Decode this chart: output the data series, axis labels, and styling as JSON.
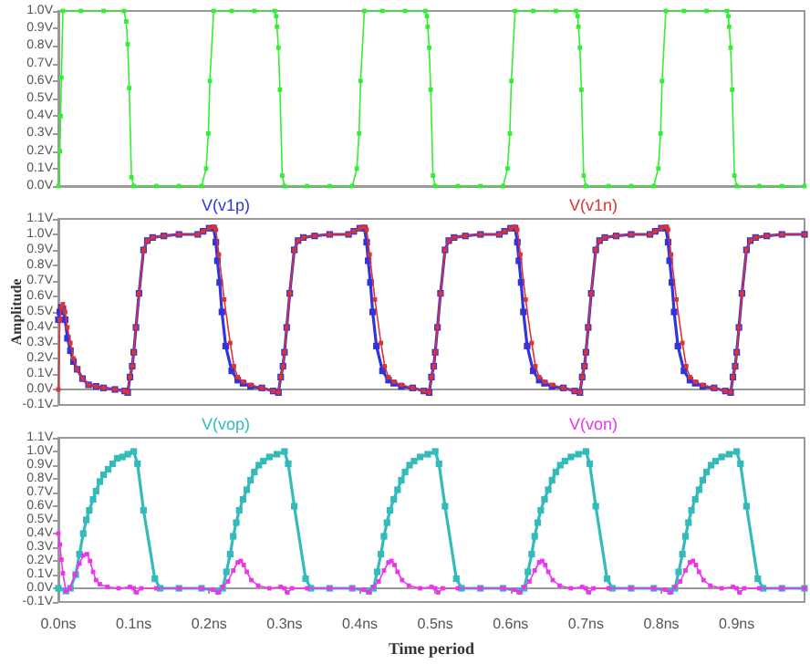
{
  "chart_data": [
    {
      "type": "line",
      "marker": "square",
      "line_style": "solid",
      "tick_labels": "y",
      "xlim": [
        0,
        0.99
      ],
      "ylim": [
        0,
        1.0
      ],
      "yticks": [
        {
          "value": 0,
          "label": "0.0V"
        },
        {
          "value": 0.1,
          "label": "0.1V"
        },
        {
          "value": 0.2,
          "label": "0.2V"
        },
        {
          "value": 0.3,
          "label": "0.3V"
        },
        {
          "value": 0.4,
          "label": "0.4V"
        },
        {
          "value": 0.5,
          "label": "0.5V"
        },
        {
          "value": 0.6,
          "label": "0.6V"
        },
        {
          "value": 0.7,
          "label": "0.7V"
        },
        {
          "value": 0.8,
          "label": "0.8V"
        },
        {
          "value": 0.9,
          "label": "0.9V"
        },
        {
          "value": 1.0,
          "label": "1.0V"
        }
      ],
      "series": [
        {
          "color": "#33ee33",
          "x": [
            0,
            0.002,
            0.003,
            0.004,
            0.006,
            0.03,
            0.06,
            0.087,
            0.09,
            0.092,
            0.094,
            0.097,
            0.1,
            0.13,
            0.16,
            0.19,
            0.196,
            0.199,
            0.201,
            0.206,
            0.23,
            0.26,
            0.287,
            0.289,
            0.29,
            0.292,
            0.294,
            0.297,
            0.3,
            0.33,
            0.36,
            0.39,
            0.396,
            0.399,
            0.401,
            0.406,
            0.43,
            0.46,
            0.487,
            0.489,
            0.49,
            0.492,
            0.494,
            0.497,
            0.5,
            0.53,
            0.56,
            0.59,
            0.596,
            0.599,
            0.601,
            0.606,
            0.63,
            0.66,
            0.687,
            0.689,
            0.69,
            0.692,
            0.694,
            0.697,
            0.7,
            0.73,
            0.76,
            0.79,
            0.796,
            0.799,
            0.801,
            0.806,
            0.83,
            0.86,
            0.887,
            0.889,
            0.89,
            0.892,
            0.894,
            0.897,
            0.9,
            0.93,
            0.96,
            0.99
          ],
          "values": [
            0,
            0.2,
            0.4,
            0.62,
            1.0,
            1.0,
            1.0,
            1.0,
            0.94,
            0.81,
            0.56,
            0.05,
            0,
            0,
            0,
            0,
            0.1,
            0.3,
            0.6,
            1.0,
            1.0,
            1.0,
            1.0,
            0.97,
            0.91,
            0.79,
            0.55,
            0.06,
            0,
            0,
            0,
            0,
            0.1,
            0.3,
            0.6,
            1.0,
            1.0,
            1.0,
            1.0,
            0.97,
            0.91,
            0.79,
            0.55,
            0.06,
            0,
            0,
            0,
            0,
            0.1,
            0.3,
            0.6,
            1.0,
            1.0,
            1.0,
            1.0,
            0.97,
            0.91,
            0.79,
            0.55,
            0.06,
            0,
            0,
            0,
            0,
            0.1,
            0.3,
            0.6,
            1.0,
            1.0,
            1.0,
            1.0,
            0.97,
            0.91,
            0.79,
            0.55,
            0.06,
            0,
            0,
            0,
            0
          ]
        }
      ]
    },
    {
      "type": "line",
      "marker": "square",
      "line_style": "solid",
      "tick_labels": "y",
      "legend": "top",
      "ylabel": "Amplitude",
      "xlim": [
        0,
        0.99
      ],
      "ylim": [
        -0.1,
        1.1
      ],
      "yticks": [
        {
          "value": -0.1,
          "label": "-0.1V"
        },
        {
          "value": 0,
          "label": "0.0V"
        },
        {
          "value": 0.1,
          "label": "0.1V"
        },
        {
          "value": 0.2,
          "label": "0.2V"
        },
        {
          "value": 0.3,
          "label": "0.3V"
        },
        {
          "value": 0.4,
          "label": "0.4V"
        },
        {
          "value": 0.5,
          "label": "0.5V"
        },
        {
          "value": 0.6,
          "label": "0.6V"
        },
        {
          "value": 0.7,
          "label": "0.7V"
        },
        {
          "value": 0.8,
          "label": "0.8V"
        },
        {
          "value": 0.9,
          "label": "0.9V"
        },
        {
          "value": 1.0,
          "label": "1.0V"
        },
        {
          "value": 1.1,
          "label": "1.1V"
        }
      ],
      "series": [
        {
          "name": "V(v1p)",
          "color": "#3333dd",
          "x": [
            0,
            0.002,
            0.004,
            0.006,
            0.009,
            0.012,
            0.016,
            0.02,
            0.025,
            0.032,
            0.04,
            0.05,
            0.06,
            0.075,
            0.088,
            0.092,
            0.095,
            0.098,
            0.1,
            0.103,
            0.107,
            0.113,
            0.118,
            0.125,
            0.14,
            0.16,
            0.185,
            0.192,
            0.2,
            0.206,
            0.209,
            0.211,
            0.214,
            0.217,
            0.222,
            0.23,
            0.238,
            0.245,
            0.255,
            0.27,
            0.285,
            0.292,
            0.295,
            0.298,
            0.3,
            0.303,
            0.307,
            0.313,
            0.318,
            0.325,
            0.34,
            0.36,
            0.385,
            0.392,
            0.4,
            0.406,
            0.409,
            0.411,
            0.414,
            0.417,
            0.422,
            0.43,
            0.438,
            0.445,
            0.455,
            0.47,
            0.485,
            0.492,
            0.495,
            0.498,
            0.5,
            0.503,
            0.507,
            0.513,
            0.518,
            0.525,
            0.54,
            0.56,
            0.585,
            0.592,
            0.6,
            0.606,
            0.609,
            0.611,
            0.614,
            0.617,
            0.622,
            0.63,
            0.638,
            0.645,
            0.655,
            0.67,
            0.685,
            0.692,
            0.695,
            0.698,
            0.7,
            0.703,
            0.707,
            0.713,
            0.718,
            0.725,
            0.74,
            0.76,
            0.785,
            0.792,
            0.8,
            0.806,
            0.809,
            0.811,
            0.814,
            0.817,
            0.822,
            0.83,
            0.838,
            0.845,
            0.855,
            0.87,
            0.885,
            0.892,
            0.895,
            0.898,
            0.9,
            0.903,
            0.907,
            0.913,
            0.918,
            0.925,
            0.94,
            0.96,
            0.99
          ],
          "values": [
            0.45,
            0.5,
            0.53,
            0.52,
            0.45,
            0.33,
            0.25,
            0.18,
            0.13,
            0.07,
            0.03,
            0.02,
            0.01,
            0,
            -0.01,
            -0.02,
            0.08,
            0.15,
            0.24,
            0.4,
            0.62,
            0.9,
            0.96,
            0.98,
            0.99,
            1.0,
            1.0,
            1.02,
            1.04,
            1.04,
            0.95,
            0.83,
            0.69,
            0.5,
            0.28,
            0.12,
            0.06,
            0.04,
            0.02,
            0.01,
            -0.01,
            -0.02,
            0.08,
            0.15,
            0.24,
            0.4,
            0.62,
            0.9,
            0.96,
            0.98,
            0.99,
            1.0,
            1.0,
            1.02,
            1.04,
            1.04,
            0.95,
            0.83,
            0.69,
            0.5,
            0.28,
            0.12,
            0.06,
            0.04,
            0.02,
            0.01,
            -0.01,
            -0.02,
            0.08,
            0.15,
            0.24,
            0.4,
            0.62,
            0.9,
            0.96,
            0.98,
            0.99,
            1.0,
            1.0,
            1.02,
            1.04,
            1.04,
            0.95,
            0.83,
            0.69,
            0.5,
            0.28,
            0.12,
            0.06,
            0.04,
            0.02,
            0.01,
            -0.01,
            -0.02,
            0.08,
            0.15,
            0.24,
            0.4,
            0.62,
            0.9,
            0.96,
            0.98,
            0.99,
            1.0,
            1.0,
            1.02,
            1.04,
            1.04,
            0.95,
            0.83,
            0.69,
            0.5,
            0.28,
            0.12,
            0.06,
            0.04,
            0.02,
            0.01,
            -0.01,
            -0.02,
            0.08,
            0.15,
            0.24,
            0.4,
            0.62,
            0.9,
            0.96,
            0.98,
            0.99,
            1.0,
            1.0
          ]
        },
        {
          "name": "V(v1n)",
          "color": "#dd3333",
          "x": [
            0,
            0.002,
            0.004,
            0.006,
            0.009,
            0.012,
            0.016,
            0.02,
            0.025,
            0.032,
            0.04,
            0.05,
            0.06,
            0.075,
            0.088,
            0.092,
            0.095,
            0.098,
            0.1,
            0.103,
            0.107,
            0.113,
            0.118,
            0.125,
            0.14,
            0.16,
            0.185,
            0.192,
            0.2,
            0.206,
            0.209,
            0.213,
            0.22,
            0.228,
            0.233,
            0.238,
            0.245,
            0.255,
            0.27,
            0.285,
            0.292,
            0.295,
            0.298,
            0.3,
            0.303,
            0.307,
            0.313,
            0.318,
            0.325,
            0.34,
            0.36,
            0.385,
            0.392,
            0.4,
            0.406,
            0.409,
            0.413,
            0.42,
            0.428,
            0.433,
            0.438,
            0.445,
            0.455,
            0.47,
            0.485,
            0.492,
            0.495,
            0.498,
            0.5,
            0.503,
            0.507,
            0.513,
            0.518,
            0.525,
            0.54,
            0.56,
            0.585,
            0.592,
            0.6,
            0.606,
            0.609,
            0.613,
            0.62,
            0.628,
            0.633,
            0.638,
            0.645,
            0.655,
            0.67,
            0.685,
            0.692,
            0.695,
            0.698,
            0.7,
            0.703,
            0.707,
            0.713,
            0.718,
            0.725,
            0.74,
            0.76,
            0.785,
            0.792,
            0.8,
            0.806,
            0.809,
            0.813,
            0.82,
            0.828,
            0.833,
            0.838,
            0.845,
            0.855,
            0.87,
            0.885,
            0.892,
            0.895,
            0.898,
            0.9,
            0.903,
            0.907,
            0.913,
            0.918,
            0.925,
            0.94,
            0.96,
            0.99
          ],
          "values": [
            0,
            0.45,
            0.53,
            0.55,
            0.5,
            0.4,
            0.3,
            0.2,
            0.13,
            0.07,
            0.03,
            0.02,
            0.01,
            0,
            -0.01,
            -0.02,
            0.08,
            0.15,
            0.24,
            0.4,
            0.62,
            0.9,
            0.96,
            0.98,
            0.99,
            1.0,
            1.0,
            1.02,
            1.04,
            1.05,
            1.03,
            0.87,
            0.58,
            0.3,
            0.15,
            0.08,
            0.05,
            0.03,
            0.01,
            -0.01,
            -0.02,
            0.08,
            0.15,
            0.24,
            0.4,
            0.62,
            0.9,
            0.96,
            0.98,
            0.99,
            1.0,
            1.0,
            1.02,
            1.04,
            1.05,
            1.03,
            0.87,
            0.58,
            0.3,
            0.15,
            0.08,
            0.05,
            0.03,
            0.01,
            -0.01,
            -0.02,
            0.08,
            0.15,
            0.24,
            0.4,
            0.62,
            0.9,
            0.96,
            0.98,
            0.99,
            1.0,
            1.0,
            1.02,
            1.04,
            1.05,
            1.03,
            0.87,
            0.58,
            0.3,
            0.15,
            0.08,
            0.05,
            0.03,
            0.01,
            -0.01,
            -0.02,
            0.08,
            0.15,
            0.24,
            0.4,
            0.62,
            0.9,
            0.96,
            0.98,
            0.99,
            1.0,
            1.0,
            1.02,
            1.04,
            1.05,
            1.03,
            0.87,
            0.58,
            0.3,
            0.15,
            0.08,
            0.05,
            0.03,
            0.01,
            -0.01,
            -0.02,
            0.08,
            0.15,
            0.24,
            0.4,
            0.62,
            0.9,
            0.96,
            0.98,
            0.99,
            1.0,
            1.0
          ]
        }
      ]
    },
    {
      "type": "line",
      "marker": "square",
      "line_style": "solid",
      "legend": "top",
      "xlabel": "Time period",
      "xlim": [
        0,
        0.99
      ],
      "xticks": [
        {
          "value": 0,
          "label": "0.0ns"
        },
        {
          "value": 0.1,
          "label": "0.1ns"
        },
        {
          "value": 0.2,
          "label": "0.2ns"
        },
        {
          "value": 0.3,
          "label": "0.3ns"
        },
        {
          "value": 0.4,
          "label": "0.4ns"
        },
        {
          "value": 0.5,
          "label": "0.5ns"
        },
        {
          "value": 0.6,
          "label": "0.6ns"
        },
        {
          "value": 0.7,
          "label": "0.7ns"
        },
        {
          "value": 0.8,
          "label": "0.8ns"
        },
        {
          "value": 0.9,
          "label": "0.9ns"
        }
      ],
      "ylim": [
        -0.1,
        1.1
      ],
      "yticks": [
        {
          "value": -0.1,
          "label": "-0.1V"
        },
        {
          "value": 0,
          "label": "0.0V"
        },
        {
          "value": 0.1,
          "label": "0.1V"
        },
        {
          "value": 0.2,
          "label": "0.2V"
        },
        {
          "value": 0.3,
          "label": "0.3V"
        },
        {
          "value": 0.4,
          "label": "0.4V"
        },
        {
          "value": 0.5,
          "label": "0.5V"
        },
        {
          "value": 0.6,
          "label": "0.6V"
        },
        {
          "value": 0.7,
          "label": "0.7V"
        },
        {
          "value": 0.8,
          "label": "0.8V"
        },
        {
          "value": 0.9,
          "label": "0.9V"
        },
        {
          "value": 1.0,
          "label": "1.0V"
        },
        {
          "value": 1.1,
          "label": "1.1V"
        }
      ],
      "series": [
        {
          "name": "V(vop)",
          "color": "#33bbbb",
          "x": [
            0,
            0.01,
            0.016,
            0.023,
            0.028,
            0.033,
            0.037,
            0.041,
            0.046,
            0.05,
            0.055,
            0.06,
            0.066,
            0.072,
            0.078,
            0.085,
            0.092,
            0.1,
            0.105,
            0.113,
            0.128,
            0.135,
            0.16,
            0.19,
            0.212,
            0.218,
            0.223,
            0.228,
            0.232,
            0.236,
            0.24,
            0.245,
            0.25,
            0.255,
            0.26,
            0.266,
            0.272,
            0.28,
            0.29,
            0.3,
            0.305,
            0.313,
            0.328,
            0.335,
            0.36,
            0.39,
            0.412,
            0.418,
            0.423,
            0.428,
            0.432,
            0.436,
            0.44,
            0.445,
            0.45,
            0.455,
            0.46,
            0.466,
            0.472,
            0.48,
            0.49,
            0.5,
            0.505,
            0.513,
            0.528,
            0.535,
            0.56,
            0.59,
            0.612,
            0.618,
            0.623,
            0.628,
            0.632,
            0.636,
            0.64,
            0.645,
            0.65,
            0.655,
            0.66,
            0.666,
            0.672,
            0.68,
            0.69,
            0.7,
            0.705,
            0.713,
            0.728,
            0.735,
            0.76,
            0.79,
            0.812,
            0.818,
            0.823,
            0.828,
            0.832,
            0.836,
            0.84,
            0.845,
            0.85,
            0.855,
            0.86,
            0.866,
            0.872,
            0.88,
            0.89,
            0.9,
            0.905,
            0.913,
            0.928,
            0.935,
            0.96,
            0.99
          ],
          "values": [
            0,
            -0.02,
            0,
            0.1,
            0.25,
            0.4,
            0.5,
            0.57,
            0.65,
            0.71,
            0.78,
            0.83,
            0.87,
            0.91,
            0.95,
            0.96,
            0.98,
            1.0,
            0.91,
            0.57,
            0.07,
            0,
            0,
            0,
            -0.02,
            0,
            0.12,
            0.25,
            0.38,
            0.48,
            0.57,
            0.65,
            0.72,
            0.79,
            0.85,
            0.9,
            0.93,
            0.96,
            0.98,
            1.0,
            0.91,
            0.6,
            0.07,
            0,
            0,
            0,
            -0.02,
            0,
            0.12,
            0.25,
            0.38,
            0.48,
            0.57,
            0.65,
            0.72,
            0.79,
            0.85,
            0.9,
            0.93,
            0.96,
            0.98,
            1.0,
            0.91,
            0.6,
            0.07,
            0,
            0,
            0,
            -0.02,
            0,
            0.12,
            0.25,
            0.38,
            0.48,
            0.57,
            0.65,
            0.72,
            0.79,
            0.85,
            0.9,
            0.93,
            0.96,
            0.98,
            1.0,
            0.91,
            0.6,
            0.07,
            0,
            0,
            0,
            -0.02,
            0,
            0.12,
            0.25,
            0.38,
            0.48,
            0.57,
            0.65,
            0.72,
            0.79,
            0.85,
            0.9,
            0.93,
            0.96,
            0.98,
            1.0,
            0.91,
            0.6,
            0.07,
            0,
            0,
            0
          ]
        },
        {
          "name": "V(von)",
          "color": "#ee33ee",
          "x": [
            0,
            0.002,
            0.004,
            0.006,
            0.01,
            0.015,
            0.022,
            0.028,
            0.033,
            0.038,
            0.042,
            0.046,
            0.05,
            0.055,
            0.065,
            0.08,
            0.095,
            0.1,
            0.104,
            0.11,
            0.13,
            0.16,
            0.19,
            0.205,
            0.212,
            0.218,
            0.225,
            0.232,
            0.238,
            0.242,
            0.246,
            0.25,
            0.256,
            0.265,
            0.28,
            0.295,
            0.3,
            0.304,
            0.31,
            0.33,
            0.36,
            0.39,
            0.405,
            0.412,
            0.418,
            0.425,
            0.432,
            0.438,
            0.442,
            0.446,
            0.45,
            0.456,
            0.465,
            0.48,
            0.495,
            0.5,
            0.504,
            0.51,
            0.53,
            0.56,
            0.59,
            0.605,
            0.612,
            0.618,
            0.625,
            0.632,
            0.638,
            0.642,
            0.646,
            0.65,
            0.656,
            0.665,
            0.68,
            0.695,
            0.7,
            0.704,
            0.71,
            0.73,
            0.76,
            0.79,
            0.805,
            0.812,
            0.818,
            0.825,
            0.832,
            0.838,
            0.842,
            0.846,
            0.85,
            0.856,
            0.865,
            0.88,
            0.895,
            0.9,
            0.904,
            0.91,
            0.93,
            0.96,
            0.99
          ],
          "values": [
            0.4,
            0.32,
            0.21,
            0.11,
            -0.02,
            0,
            0.1,
            0.18,
            0.24,
            0.25,
            0.2,
            0.12,
            0.06,
            0.03,
            0.01,
            0,
            0.01,
            0,
            -0.03,
            0,
            0,
            0,
            0,
            -0.01,
            -0.03,
            0.01,
            0.05,
            0.13,
            0.19,
            0.2,
            0.17,
            0.12,
            0.06,
            0.02,
            0,
            0.01,
            0,
            -0.03,
            0,
            0,
            0,
            0,
            -0.01,
            -0.03,
            0.01,
            0.05,
            0.13,
            0.19,
            0.2,
            0.17,
            0.12,
            0.06,
            0.02,
            0,
            0.01,
            0,
            -0.03,
            0,
            0,
            0,
            0,
            -0.01,
            -0.03,
            0.01,
            0.05,
            0.13,
            0.19,
            0.2,
            0.17,
            0.12,
            0.06,
            0.02,
            0,
            0.01,
            0,
            -0.03,
            0,
            0,
            0,
            0,
            -0.01,
            -0.03,
            0.01,
            0.05,
            0.13,
            0.19,
            0.2,
            0.17,
            0.12,
            0.06,
            0.02,
            0,
            0.01,
            0,
            -0.03,
            0,
            0,
            0,
            0
          ]
        }
      ]
    }
  ]
}
